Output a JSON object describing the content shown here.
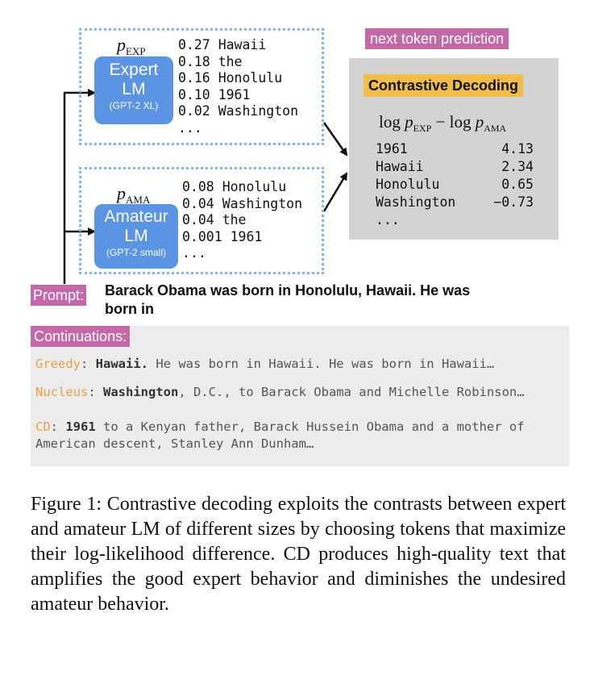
{
  "expert": {
    "dist_symbol": "p",
    "dist_subscript": "EXP",
    "name_line1": "Expert",
    "name_line2": "LM",
    "model": "(GPT-2 XL)",
    "tokens": [
      {
        "prob": "0.27",
        "token": "Hawaii"
      },
      {
        "prob": "0.18",
        "token": "the"
      },
      {
        "prob": "0.16",
        "token": "Honolulu"
      },
      {
        "prob": "0.10",
        "token": "1961"
      },
      {
        "prob": "0.02",
        "token": "Washington"
      }
    ],
    "ellipsis": "..."
  },
  "amateur": {
    "dist_symbol": "p",
    "dist_subscript": "AMA",
    "name_line1": "Amateur",
    "name_line2": "LM",
    "model": "(GPT-2 small)",
    "tokens": [
      {
        "prob": "0.08",
        "token": "Honolulu"
      },
      {
        "prob": "0.04",
        "token": "Washington"
      },
      {
        "prob": "0.04",
        "token": "the"
      },
      {
        "prob": "0.001",
        "token": "1961"
      }
    ],
    "ellipsis": "..."
  },
  "next_token_tag": "next token prediction",
  "contrastive": {
    "title": "Contrastive Decoding",
    "formula": {
      "log1": "log",
      "p1": "p",
      "sub1": "EXP",
      "minus": "−",
      "log2": "log",
      "p2": "p",
      "sub2": "AMA"
    },
    "rows": [
      {
        "token": "1961",
        "score": "4.13"
      },
      {
        "token": "Hawaii",
        "score": "2.34"
      },
      {
        "token": "Honolulu",
        "score": "0.65"
      },
      {
        "token": "Washington",
        "score": "−0.73"
      }
    ],
    "ellipsis": "..."
  },
  "prompt": {
    "tag": "Prompt:",
    "text_line1": "Barack Obama was born in Honolulu, Hawaii. He was",
    "text_line2": "born in"
  },
  "continuations": {
    "tag": "Continuations:",
    "greedy": {
      "method": "Greedy",
      "sep": ": ",
      "bold": "Hawaii.",
      "rest": " He was born in Hawaii. He was born in Hawaii…"
    },
    "nucleus": {
      "method": "Nucleus",
      "sep": ": ",
      "bold": "Washington",
      "rest": ", D.C., to Barack Obama and Michelle Robinson…"
    },
    "cd": {
      "method": "CD",
      "sep": ": ",
      "bold": "1961",
      "rest": " to a Kenyan father, Barack Hussein Obama and a mother of American descent, Stanley Ann Dunham…"
    }
  },
  "caption": "Figure 1:  Contrastive decoding exploits the contrasts between expert and amateur LM of different sizes by choosing tokens that maximize their log-likelihood difference. CD produces high-quality text that amplifies the good expert behavior and diminishes the undesired amateur behavior.",
  "colors": {
    "lm_blue": "#5a94e3",
    "dotted_border": "#7fb8ec",
    "tag_pink": "#c468a8",
    "cd_title_yellow": "#f0bd4a",
    "cd_panel_gray": "#d3d3d3",
    "continuation_panel_gray": "#ececec",
    "method_orange": "#e5a04a"
  }
}
